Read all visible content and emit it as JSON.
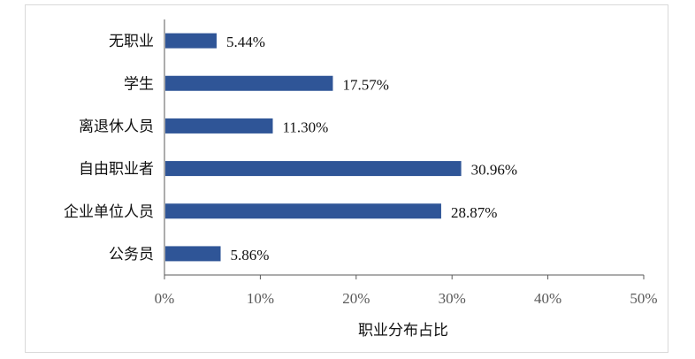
{
  "chart_data": {
    "type": "bar",
    "orientation": "horizontal",
    "categories": [
      "无职业",
      "学生",
      "离退休人员",
      "自由职业者",
      "企业单位人员",
      "公务员"
    ],
    "values": [
      5.44,
      17.57,
      11.3,
      30.96,
      28.87,
      5.86
    ],
    "data_labels": [
      "5.44%",
      "17.57%",
      "11.30%",
      "30.96%",
      "28.87%",
      "5.86%"
    ],
    "xlabel": "职业分布占比",
    "ylabel": "",
    "title": "",
    "xlim": [
      0,
      50
    ],
    "xticks": [
      0,
      10,
      20,
      30,
      40,
      50
    ],
    "xtick_labels": [
      "0%",
      "10%",
      "20%",
      "30%",
      "40%",
      "50%"
    ],
    "grid": false,
    "bar_color": "#2f5597"
  }
}
